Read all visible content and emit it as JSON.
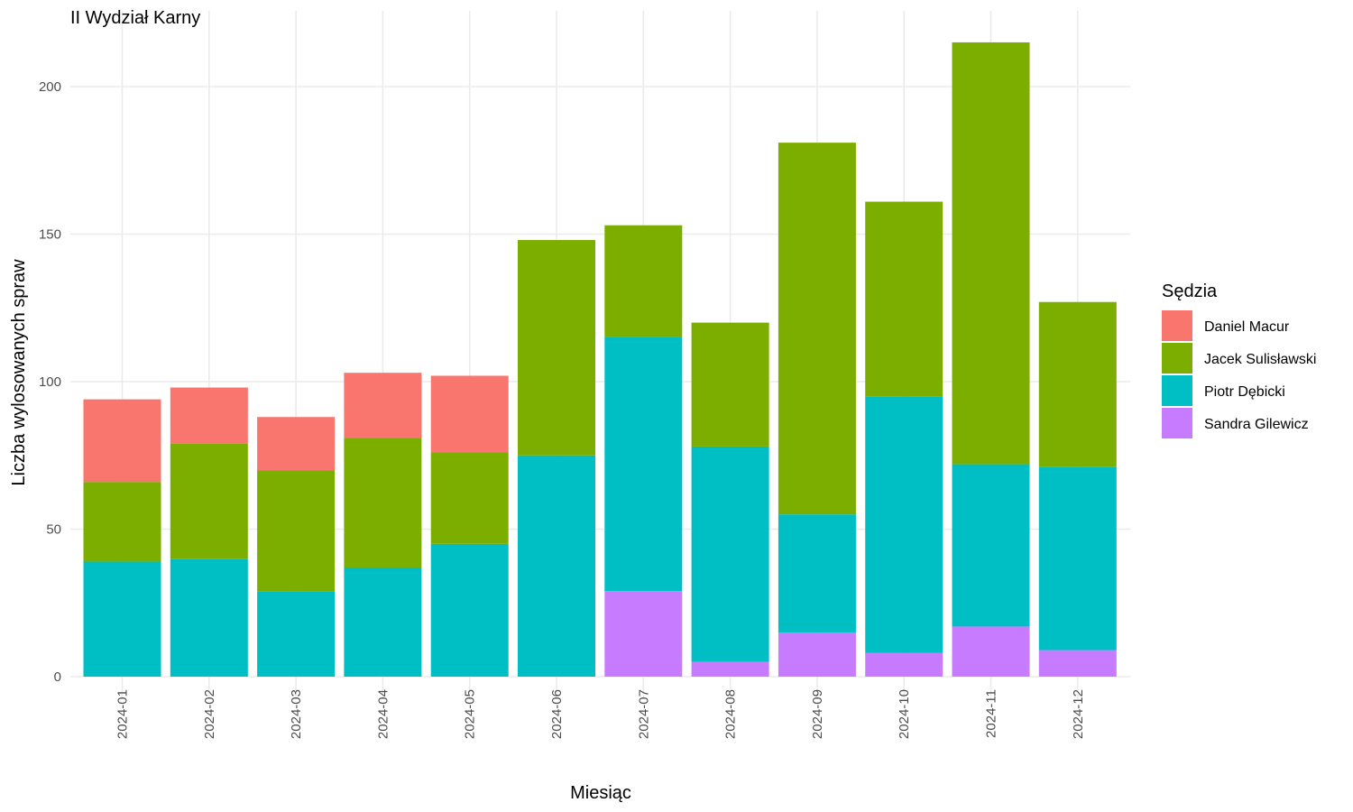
{
  "chart_data": {
    "type": "bar",
    "stacked": true,
    "title": "II Wydział Karny",
    "xlabel": "Miesiąc",
    "ylabel": "Liczba wylosowanych spraw",
    "ylim": [
      0,
      220
    ],
    "yticks": [
      0,
      50,
      100,
      150,
      200
    ],
    "grid": true,
    "legend_title": "Sędzia",
    "legend_position": "right",
    "categories": [
      "2024-01",
      "2024-02",
      "2024-03",
      "2024-04",
      "2024-05",
      "2024-06",
      "2024-07",
      "2024-08",
      "2024-09",
      "2024-10",
      "2024-11",
      "2024-12"
    ],
    "stack_order_bottom_to_top": [
      "Sandra Gilewicz",
      "Piotr Dębicki",
      "Jacek Sulisławski",
      "Daniel Macur"
    ],
    "series": [
      {
        "name": "Daniel Macur",
        "color": "#F8766D",
        "values": [
          28,
          19,
          18,
          22,
          26,
          0,
          0,
          0,
          0,
          0,
          0,
          0
        ]
      },
      {
        "name": "Jacek Sulisławski",
        "color": "#7CAE00",
        "values": [
          27,
          39,
          41,
          44,
          31,
          73,
          38,
          42,
          126,
          66,
          143,
          56
        ]
      },
      {
        "name": "Piotr Dębicki",
        "color": "#00BFC4",
        "values": [
          39,
          40,
          29,
          37,
          45,
          75,
          86,
          73,
          40,
          87,
          55,
          62
        ]
      },
      {
        "name": "Sandra Gilewicz",
        "color": "#C77CFF",
        "values": [
          0,
          0,
          0,
          0,
          0,
          0,
          29,
          5,
          15,
          8,
          17,
          9
        ]
      }
    ]
  }
}
